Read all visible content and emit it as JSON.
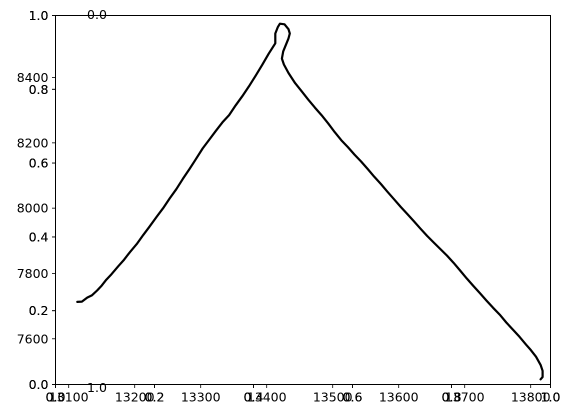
{
  "chart_data": [
    {
      "type": "line",
      "role": "data-plot",
      "title": "",
      "xlabel": "",
      "ylabel": "",
      "xlim": [
        13080,
        13830
      ],
      "ylim": [
        7460,
        8590
      ],
      "grid": false,
      "legend": "none",
      "line_color": "#000000",
      "x_tick_values": [
        13100,
        13200,
        13300,
        13400,
        13500,
        13600,
        13700,
        13800
      ],
      "x_tick_labels": [
        "13100",
        "13200",
        "13300",
        "13400",
        "13500",
        "13600",
        "13700",
        "13800"
      ],
      "y_tick_values": [
        7600,
        7800,
        8000,
        8200,
        8400
      ],
      "y_tick_labels": [
        "7600",
        "7800",
        "8000",
        "8200",
        "8400"
      ],
      "series": [
        {
          "x": [
            13113,
            13120,
            13128,
            13135,
            13143,
            13150,
            13157,
            13165,
            13175,
            13183,
            13193,
            13203,
            13213,
            13222,
            13233,
            13243,
            13253,
            13263,
            13273,
            13283,
            13291,
            13303,
            13313,
            13323,
            13333,
            13343,
            13353,
            13363,
            13373,
            13383,
            13393,
            13403,
            13413,
            13413,
            13417,
            13420,
            13427,
            13433,
            13435,
            13433,
            13425,
            13423,
            13426,
            13433,
            13443,
            13453,
            13463,
            13473,
            13483,
            13493,
            13503,
            13513,
            13523,
            13533,
            13543,
            13553,
            13563,
            13573,
            13583,
            13593,
            13603,
            13613,
            13623,
            13633,
            13643,
            13653,
            13663,
            13673,
            13683,
            13693,
            13703,
            13713,
            13723,
            13733,
            13743,
            13753,
            13763,
            13773,
            13783,
            13793,
            13800,
            13808,
            13815,
            13818,
            13818,
            13815
          ],
          "y": [
            7713,
            7714,
            7726,
            7733,
            7748,
            7763,
            7781,
            7798,
            7822,
            7840,
            7866,
            7890,
            7918,
            7942,
            7973,
            8000,
            8030,
            8058,
            8090,
            8120,
            8145,
            8183,
            8210,
            8237,
            8263,
            8285,
            8315,
            8343,
            8373,
            8405,
            8438,
            8473,
            8505,
            8535,
            8555,
            8565,
            8563,
            8548,
            8535,
            8520,
            8480,
            8458,
            8440,
            8414,
            8383,
            8358,
            8332,
            8308,
            8285,
            8260,
            8233,
            8208,
            8187,
            8164,
            8143,
            8120,
            8096,
            8074,
            8050,
            8027,
            8004,
            7982,
            7960,
            7937,
            7915,
            7895,
            7875,
            7855,
            7833,
            7809,
            7785,
            7762,
            7740,
            7717,
            7695,
            7674,
            7650,
            7628,
            7606,
            7582,
            7566,
            7545,
            7520,
            7502,
            7483,
            7476
          ]
        }
      ]
    },
    {
      "type": "line",
      "role": "overlapping-empty-axes",
      "xlim": [
        0,
        1
      ],
      "ylim": [
        0,
        1
      ],
      "x_tick_labels": [
        "0.0",
        "0.2",
        "0.4",
        "0.6",
        "0.8",
        "1.0"
      ],
      "y_tick_labels": [
        "0.0",
        "0.2",
        "0.4",
        "0.6",
        "0.8",
        "1.0"
      ],
      "series": []
    },
    {
      "type": "line",
      "role": "overlapping-empty-axes",
      "xlim": [
        0,
        1
      ],
      "ylim": [
        0,
        1
      ],
      "x_tick_labels": [
        "0.0",
        "0.2",
        "0.4",
        "0.6",
        "0.8",
        "1.0"
      ],
      "y_tick_labels": [
        "0.0",
        "0.2",
        "0.4",
        "0.6",
        "0.8",
        "1.0"
      ],
      "series": []
    },
    {
      "type": "line",
      "role": "polar-axes-remnant",
      "radial_labels": [
        "0.0",
        "1.0"
      ],
      "series": []
    }
  ]
}
